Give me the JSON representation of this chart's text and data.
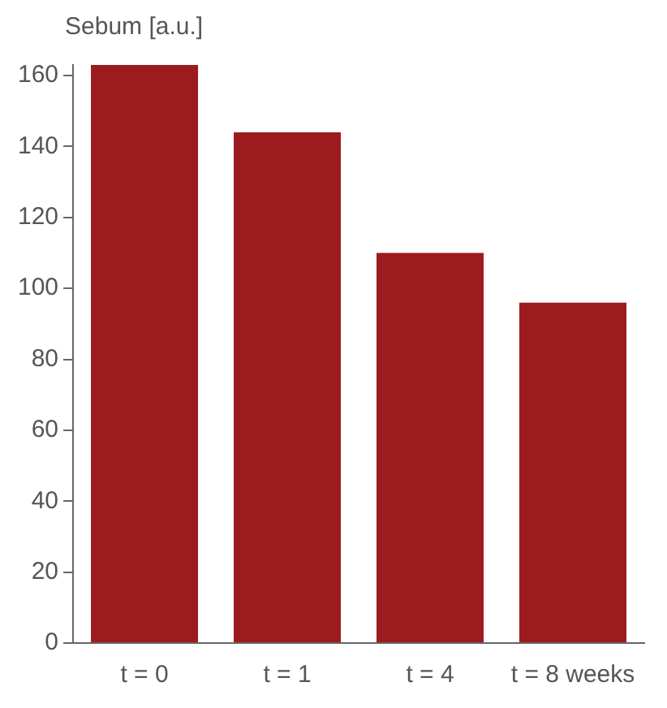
{
  "chart_data": {
    "type": "bar",
    "ylabel": "Sebum  [a.u.]",
    "categories": [
      "t = 0",
      "t = 1",
      "t = 4",
      "t = 8 weeks"
    ],
    "values": [
      163,
      144,
      110,
      96
    ],
    "color": "#9b1b1e",
    "ylim": [
      0,
      163
    ],
    "yticks": [
      0,
      20,
      40,
      60,
      80,
      100,
      120,
      140,
      160
    ],
    "grid": false,
    "legend": false
  }
}
